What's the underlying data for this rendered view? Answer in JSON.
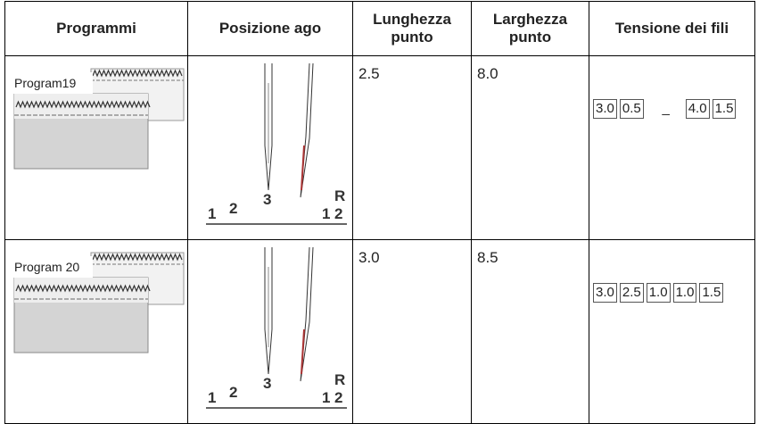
{
  "table": {
    "header": [
      "Programmi",
      "Posizione ago",
      "Lunghezza punto",
      "Larghezza punto",
      "Tensione dei fili"
    ],
    "rows": [
      {
        "program": "Program19",
        "needle_labels": [
          "1",
          "2",
          "3",
          "1",
          "2",
          "R"
        ],
        "length": "2.5",
        "width": "8.0",
        "tension": [
          "3.0",
          "0.5",
          "_",
          "4.0",
          "1.5"
        ]
      },
      {
        "program": "Program 20",
        "needle_labels": [
          "1",
          "2",
          "3",
          "1",
          "2",
          "R"
        ],
        "length": "3.0",
        "width": "8.5",
        "tension": [
          "3.0",
          "2.5",
          "1.0",
          "1.0",
          "1.5"
        ]
      }
    ]
  }
}
